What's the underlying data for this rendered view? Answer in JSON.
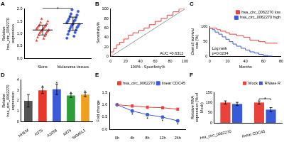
{
  "chart_data": [
    {
      "type": "strip",
      "title": "A",
      "y_label": "Relative hsa_circ_0062270 expression",
      "ylim": [
        0,
        2
      ],
      "yticks": [
        {
          "value": 0,
          "label": "0.0"
        },
        0.5,
        {
          "value": 1,
          "label": "1.0"
        },
        1.5,
        {
          "value": 2,
          "label": "2.0"
        }
      ],
      "grid": false,
      "annotations": [
        "*"
      ],
      "series": [
        {
          "name": "Skins",
          "color": "#e8423a",
          "marker": "triangle",
          "values": [
            0.72,
            0.8,
            0.85,
            0.9,
            0.95,
            1.0,
            1.02,
            1.05,
            1.08,
            1.1,
            1.12,
            1.15,
            1.18,
            1.2,
            1.22,
            1.25,
            1.28,
            1.3,
            1.32,
            1.35,
            1.4,
            1.45,
            1.5,
            1.6
          ],
          "mean": 1.15,
          "error": 0.2
        },
        {
          "name": "Melanoma tissues",
          "color": "#3a5bd9",
          "marker": "circle",
          "values": [
            0.82,
            0.9,
            0.98,
            1.05,
            1.1,
            1.15,
            1.2,
            1.25,
            1.28,
            1.3,
            1.35,
            1.38,
            1.4,
            1.45,
            1.5,
            1.52,
            1.55,
            1.6,
            1.65,
            1.7,
            1.75,
            1.8,
            1.9,
            1.97
          ],
          "mean": 1.4,
          "error": 0.27
        }
      ]
    },
    {
      "type": "line",
      "title": "B",
      "x_label": "100% - Specificity%",
      "y_label": "Sensitivity%",
      "xlim": [
        0,
        100
      ],
      "xticks": [
        0,
        20,
        40,
        60,
        80,
        100
      ],
      "ylim": [
        0,
        100
      ],
      "yticks": [
        0,
        20,
        40,
        60,
        80,
        100
      ],
      "grid": false,
      "annotations": [
        "AUC =0.6312"
      ],
      "series": [
        {
          "color": "#e8423a",
          "line_style": "step",
          "x": [
            0,
            4,
            8,
            12,
            18,
            24,
            30,
            38,
            45,
            52,
            60,
            68,
            76,
            84,
            92,
            100
          ],
          "values": [
            0,
            10,
            17,
            25,
            30,
            37,
            45,
            50,
            55,
            60,
            67,
            74,
            80,
            87,
            94,
            100
          ]
        },
        {
          "color": "#999999",
          "line_style": "solid",
          "x": [
            0,
            100
          ],
          "values": [
            0,
            100
          ]
        }
      ]
    },
    {
      "type": "line",
      "title": "C",
      "x_label": "Months",
      "y_label": "Overall survival rate (%)",
      "xlim": [
        0,
        80
      ],
      "xticks": [
        0,
        20,
        40,
        60,
        80
      ],
      "ylim": [
        0,
        100
      ],
      "yticks": [
        0,
        50,
        100
      ],
      "grid": false,
      "legend": "upper right",
      "annotations": [
        "Log rank",
        "p=0.0234"
      ],
      "series": [
        {
          "name": "hsa_circ_0062270 low",
          "color": "#e8423a",
          "line_style": "step",
          "x": [
            0,
            8,
            12,
            18,
            22,
            30,
            38,
            45,
            55,
            62,
            70,
            76
          ],
          "values": [
            100,
            95,
            90,
            85,
            80,
            75,
            70,
            65,
            55,
            50,
            45,
            45
          ]
        },
        {
          "name": "hsa_circ_0062270 high",
          "color": "#3a5bd9",
          "line_style": "step",
          "x": [
            0,
            3,
            6,
            10,
            14,
            18,
            22,
            26,
            30,
            35,
            40,
            45,
            50,
            55,
            60,
            65,
            70
          ],
          "values": [
            100,
            95,
            90,
            82,
            75,
            66,
            58,
            50,
            42,
            35,
            28,
            22,
            16,
            12,
            8,
            4,
            2
          ]
        }
      ]
    },
    {
      "type": "bar",
      "title": "D",
      "y_label": "Relative hsa_circ_0062270 expression",
      "categories": [
        "NHEM",
        "A375",
        "A2058",
        "A875",
        "SKMEL1"
      ],
      "values": [
        2.0,
        3.0,
        3.1,
        2.5,
        2.6
      ],
      "errors": [
        0.6,
        0.3,
        0.5,
        0.2,
        0.2
      ],
      "colors": [
        "#555555",
        "#e8372b",
        "#3b5bd9",
        "#2e9e3b",
        "#f0a020"
      ],
      "significance": [
        null,
        "*",
        "*",
        "*",
        "*"
      ],
      "ylim": [
        0,
        4
      ],
      "yticks": [
        0,
        1,
        2,
        3,
        4
      ],
      "grid": false
    },
    {
      "type": "line",
      "title": "E",
      "y_label": "Fold change",
      "categories": [
        "0h",
        "4h",
        "8h",
        "12h",
        "24h"
      ],
      "ylim": [
        0,
        1.5
      ],
      "yticks": [
        {
          "value": 0,
          "label": "0.0"
        },
        0.5,
        {
          "value": 1,
          "label": "1.0"
        },
        1.5
      ],
      "grid": false,
      "legend": "upper right",
      "series": [
        {
          "name": "hsa_circ_0062270",
          "color": "#e8423a",
          "marker": "square",
          "values": [
            1.0,
            0.95,
            0.9,
            0.88,
            0.82
          ],
          "errors": [
            0.03,
            0.05,
            0.05,
            0.05,
            0.05
          ]
        },
        {
          "name": "linear CDC45",
          "color": "#3a5bd9",
          "marker": "circle",
          "values": [
            1.0,
            0.75,
            0.6,
            0.5,
            0.35
          ],
          "errors": [
            0.03,
            0.05,
            0.05,
            0.05,
            0.05
          ],
          "significance": [
            null,
            "*",
            "*",
            "*",
            "*"
          ]
        }
      ]
    },
    {
      "type": "bar",
      "title": "F",
      "y_label": "Relative RNA expression (% of Mock)",
      "categories": [
        "hsa_circ_0062270",
        "linear CDC45"
      ],
      "series": [
        {
          "name": "Mock",
          "color": "#e8423a",
          "values": [
            100,
            100
          ],
          "errors": [
            8,
            8
          ]
        },
        {
          "name": "RNase R",
          "color": "#3a5bd9",
          "values": [
            93,
            65
          ],
          "errors": [
            8,
            10
          ]
        }
      ],
      "significance": [
        null,
        "*"
      ],
      "ylim": [
        0,
        150
      ],
      "yticks": [
        0,
        50,
        100,
        150
      ],
      "grid": false,
      "legend": "upper right"
    }
  ]
}
